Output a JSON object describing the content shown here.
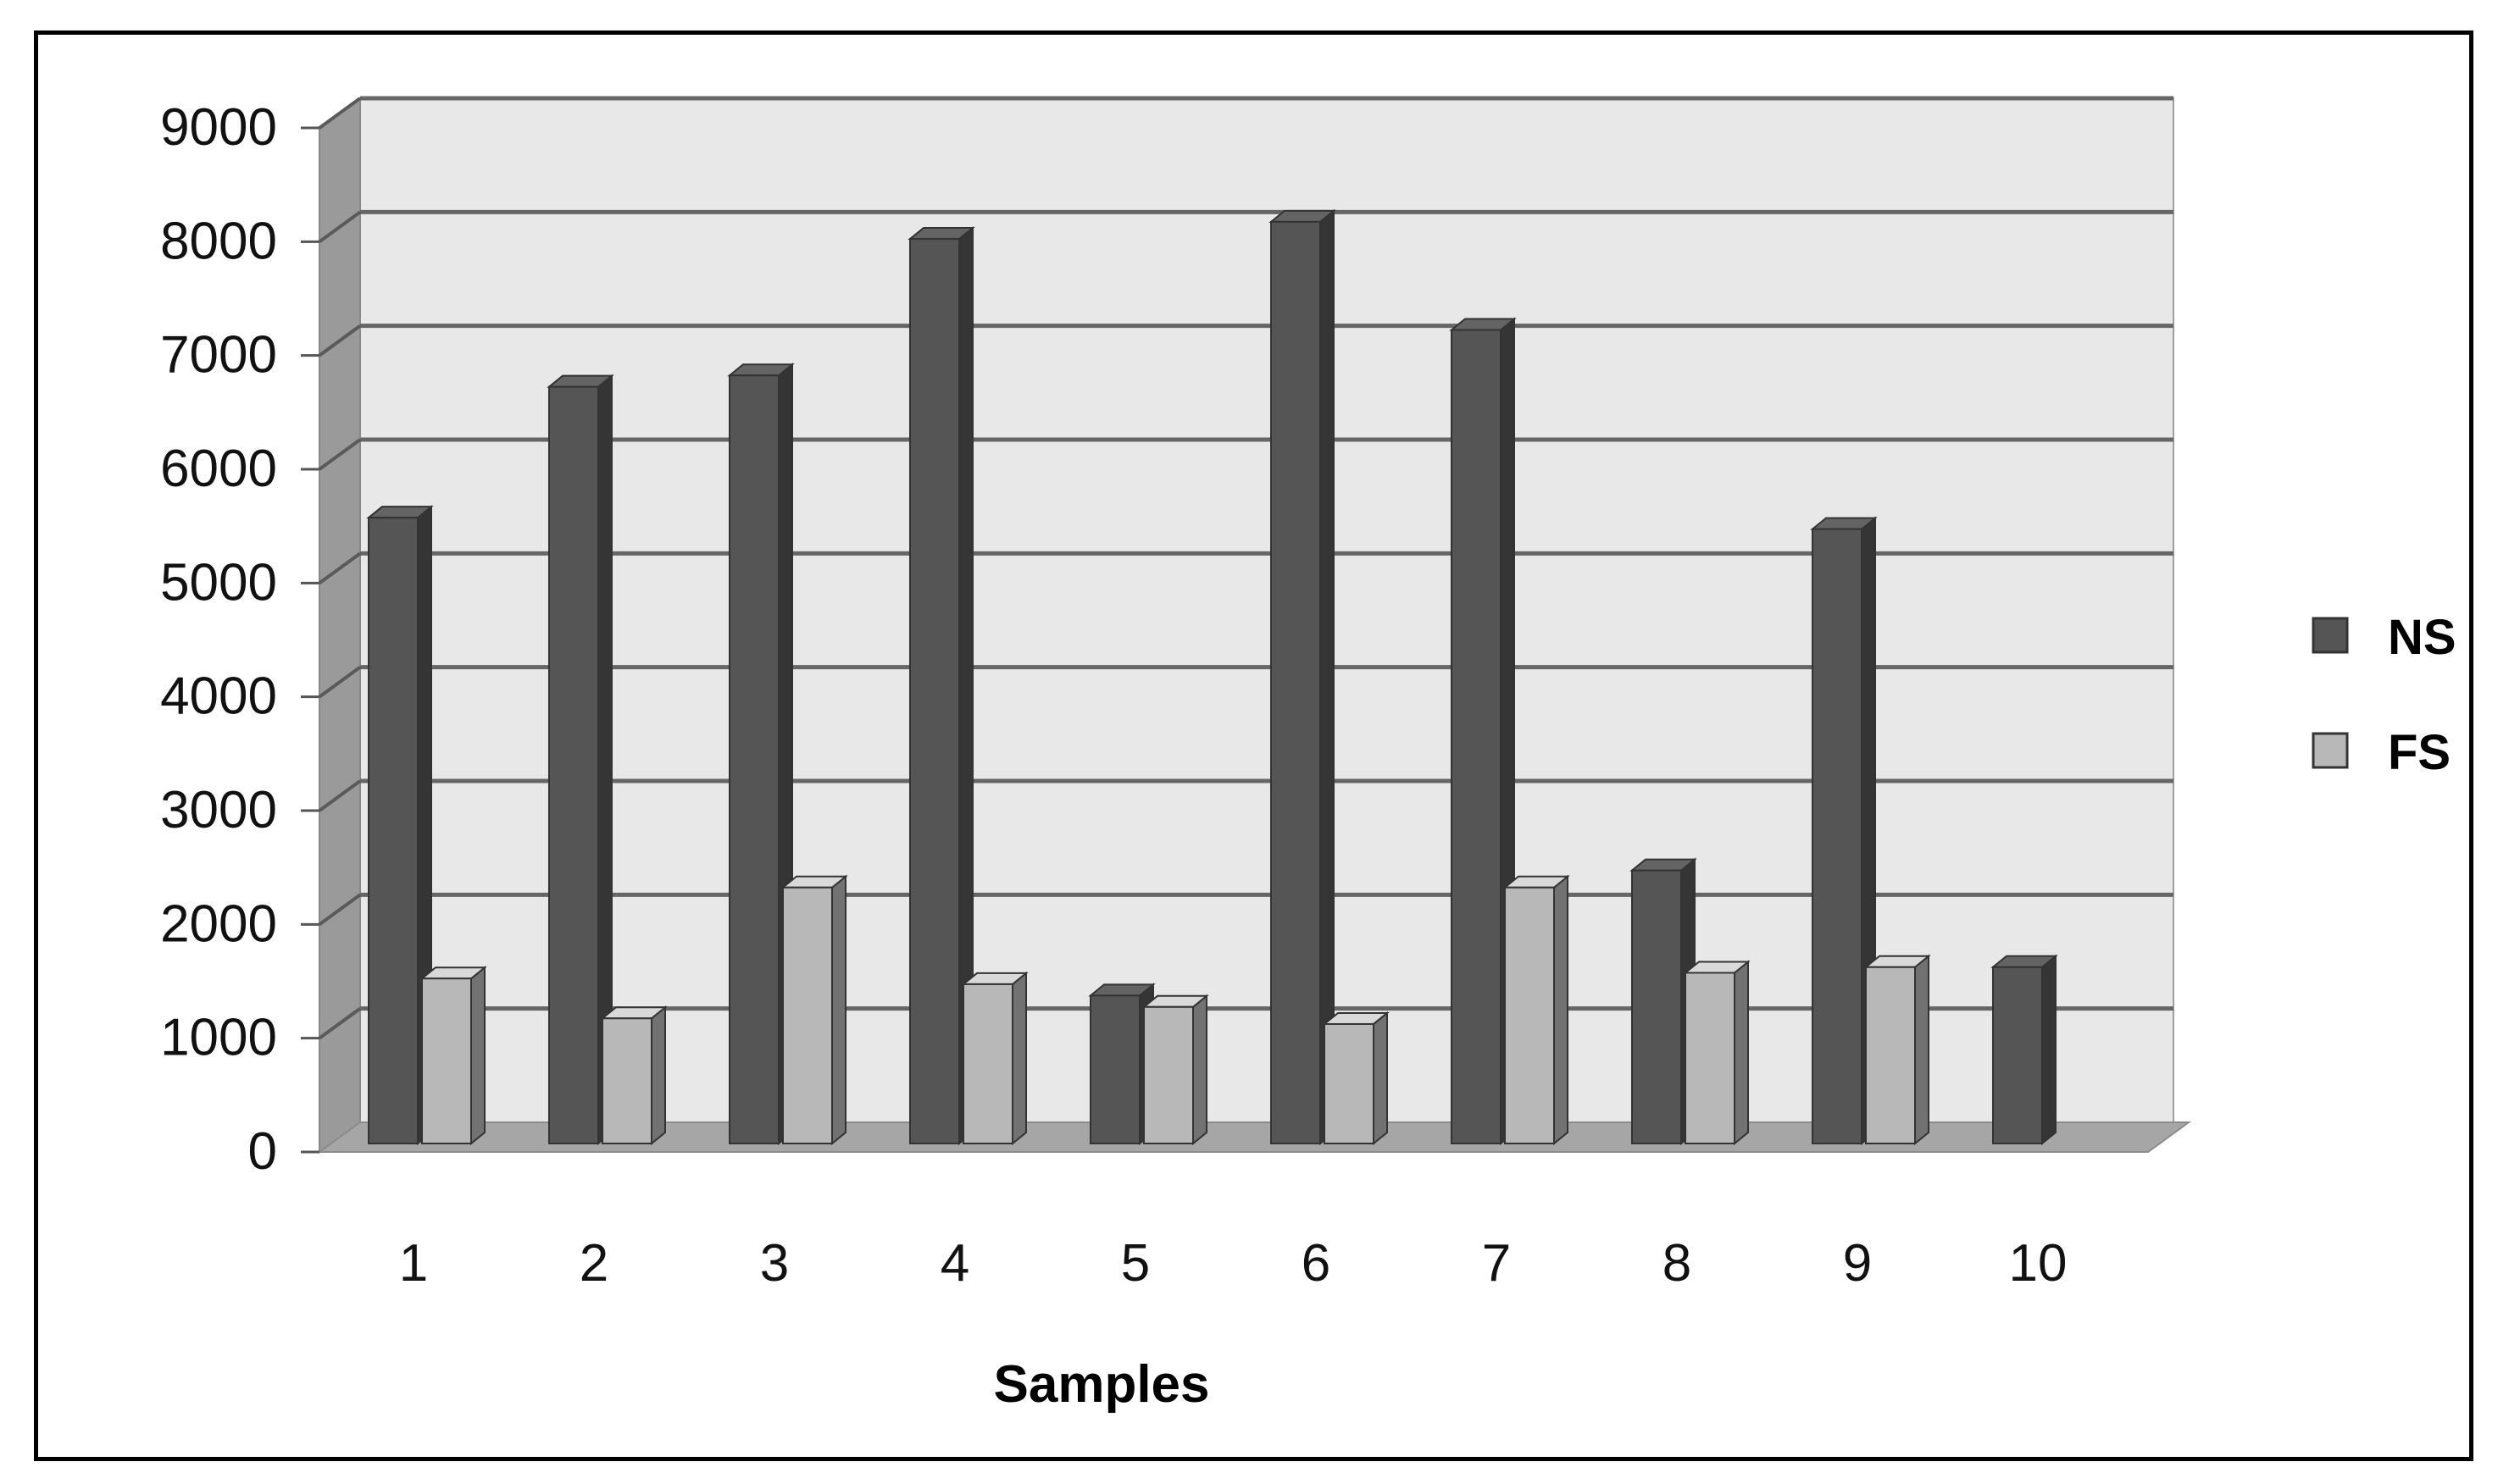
{
  "chart_data": {
    "type": "bar",
    "subtype": "3d-clustered-column",
    "categories": [
      "1",
      "2",
      "3",
      "4",
      "5",
      "6",
      "7",
      "8",
      "9",
      "10"
    ],
    "series": [
      {
        "name": "NS",
        "color": "#555555",
        "values": [
          5500,
          6650,
          6750,
          7950,
          1300,
          8100,
          7150,
          2400,
          5400,
          1550
        ]
      },
      {
        "name": "FS",
        "color": "#b8b8b8",
        "values": [
          1450,
          1100,
          2250,
          1400,
          1200,
          1050,
          2250,
          1500,
          1550,
          null
        ]
      }
    ],
    "xlabel": "Samples",
    "ylabel": "",
    "ylim": [
      0,
      9000
    ],
    "yticks": [
      "0",
      "1000",
      "2000",
      "3000",
      "4000",
      "5000",
      "6000",
      "7000",
      "8000",
      "9000"
    ],
    "grid": true,
    "legend_position": "right"
  }
}
